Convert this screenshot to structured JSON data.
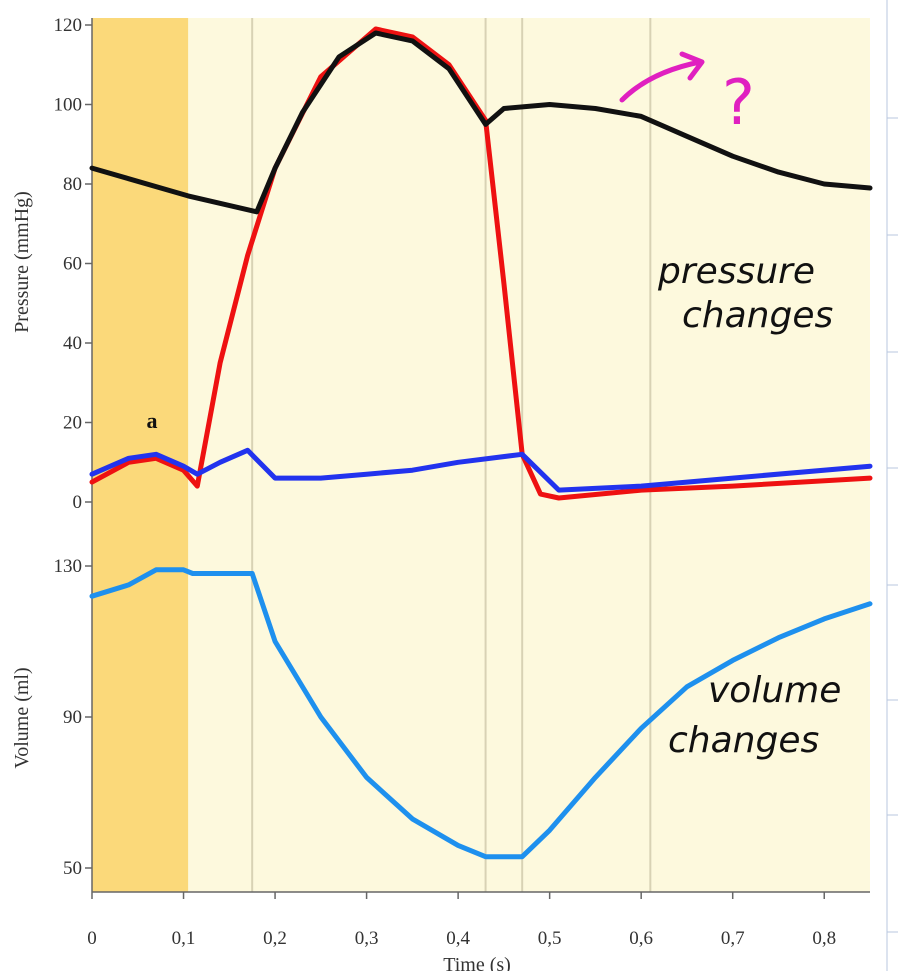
{
  "chart_data": [
    {
      "type": "line",
      "title": "",
      "xlabel": "Time (s)",
      "ylabel": "Pressure (mmHg)",
      "xlim": [
        0,
        0.85
      ],
      "ylim": [
        0,
        120
      ],
      "xticks": [
        "0",
        "0,1",
        "0,2",
        "0,3",
        "0,4",
        "0,5",
        "0,6",
        "0,7",
        "0,8"
      ],
      "yticks": [
        "0",
        "20",
        "40",
        "60",
        "80",
        "100",
        "120"
      ],
      "phase_boundaries": [
        0.105,
        0.175,
        0.43,
        0.47,
        0.61
      ],
      "shaded_interval": [
        0,
        0.105
      ],
      "annotation": "a",
      "series": [
        {
          "color": "#111111",
          "points": [
            [
              0,
              84
            ],
            [
              0.105,
              77
            ],
            [
              0.18,
              73
            ],
            [
              0.2,
              84
            ],
            [
              0.23,
              98
            ],
            [
              0.27,
              112
            ],
            [
              0.31,
              118
            ],
            [
              0.35,
              116
            ],
            [
              0.39,
              109
            ],
            [
              0.43,
              95
            ],
            [
              0.45,
              99
            ],
            [
              0.5,
              100
            ],
            [
              0.55,
              99
            ],
            [
              0.6,
              97
            ],
            [
              0.65,
              92
            ],
            [
              0.7,
              87
            ],
            [
              0.75,
              83
            ],
            [
              0.8,
              80
            ],
            [
              0.85,
              79
            ]
          ]
        },
        {
          "color": "#ee1111",
          "points": [
            [
              0,
              5
            ],
            [
              0.04,
              10
            ],
            [
              0.07,
              11
            ],
            [
              0.1,
              8
            ],
            [
              0.115,
              4
            ],
            [
              0.14,
              35
            ],
            [
              0.17,
              62
            ],
            [
              0.2,
              84
            ],
            [
              0.25,
              107
            ],
            [
              0.31,
              119
            ],
            [
              0.35,
              117
            ],
            [
              0.39,
              110
            ],
            [
              0.43,
              96
            ],
            [
              0.45,
              55
            ],
            [
              0.47,
              12
            ],
            [
              0.49,
              2
            ],
            [
              0.51,
              1
            ],
            [
              0.6,
              3
            ],
            [
              0.7,
              4
            ],
            [
              0.85,
              6
            ]
          ]
        },
        {
          "color": "#2233ee",
          "points": [
            [
              0,
              7
            ],
            [
              0.04,
              11
            ],
            [
              0.07,
              12
            ],
            [
              0.1,
              9
            ],
            [
              0.115,
              7
            ],
            [
              0.14,
              10
            ],
            [
              0.17,
              13
            ],
            [
              0.2,
              6
            ],
            [
              0.25,
              6
            ],
            [
              0.3,
              7
            ],
            [
              0.35,
              8
            ],
            [
              0.4,
              10
            ],
            [
              0.47,
              12
            ],
            [
              0.51,
              3
            ],
            [
              0.6,
              4
            ],
            [
              0.7,
              6
            ],
            [
              0.85,
              9
            ]
          ]
        }
      ]
    },
    {
      "type": "line",
      "title": "",
      "xlabel": "",
      "ylabel": "Volume (ml)",
      "xlim": [
        0,
        0.85
      ],
      "ylim": [
        47,
        130
      ],
      "yticks": [
        "50",
        "90",
        "130"
      ],
      "series": [
        {
          "color": "#1e90ee",
          "points": [
            [
              0,
              122
            ],
            [
              0.04,
              125
            ],
            [
              0.07,
              129
            ],
            [
              0.1,
              129
            ],
            [
              0.11,
              128
            ],
            [
              0.175,
              128
            ],
            [
              0.2,
              110
            ],
            [
              0.25,
              90
            ],
            [
              0.3,
              74
            ],
            [
              0.35,
              63
            ],
            [
              0.4,
              56
            ],
            [
              0.43,
              53
            ],
            [
              0.47,
              53
            ],
            [
              0.5,
              60
            ],
            [
              0.55,
              74
            ],
            [
              0.6,
              87
            ],
            [
              0.65,
              98
            ],
            [
              0.7,
              105
            ],
            [
              0.75,
              111
            ],
            [
              0.8,
              116
            ],
            [
              0.85,
              120
            ]
          ]
        }
      ]
    }
  ],
  "handwritten_notes": {
    "pressure_note_line1": "pressure",
    "pressure_note_line2": "changes",
    "volume_note_line1": "volume",
    "volume_note_line2": "changes",
    "question": "?"
  }
}
